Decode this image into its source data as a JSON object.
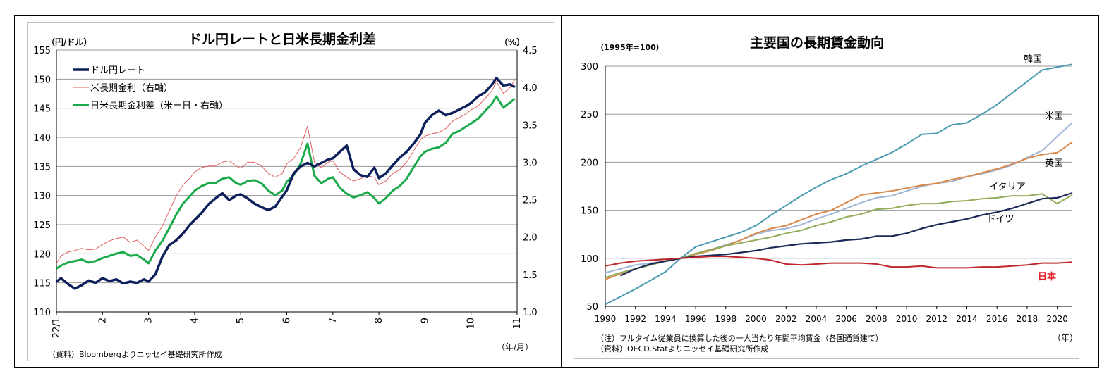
{
  "chart_data": [
    {
      "type": "line",
      "title": "ドル円レートと日米長期金利差",
      "left_unit": "（円/ドル）",
      "right_unit": "（%）",
      "x_unit": "（年/月）",
      "source": "（資料）Bloombergよりニッセイ基礎研究所作成",
      "ylim_left": [
        110,
        155
      ],
      "yticks_left": [
        "110",
        "115",
        "120",
        "125",
        "130",
        "135",
        "140",
        "145",
        "150",
        "155"
      ],
      "ylim_right": [
        1.0,
        4.5
      ],
      "yticks_right": [
        "1.0",
        "1.5",
        "2.0",
        "2.5",
        "3.0",
        "3.5",
        "4.0",
        "4.5"
      ],
      "xlim": [
        1,
        11
      ],
      "x_tick_labels": [
        "22/1",
        "2",
        "3",
        "4",
        "5",
        "6",
        "7",
        "8",
        "9",
        "10",
        "11"
      ],
      "grid": true,
      "legend_position": "top-left",
      "colors": {
        "usdjpy": "#0c1f5b",
        "us10y": "#e06060",
        "spread": "#1aaa4a"
      },
      "series": [
        {
          "name": "ドル円レート",
          "axis": "left",
          "x": [
            1.0,
            1.1,
            1.25,
            1.4,
            1.55,
            1.7,
            1.85,
            2.0,
            2.15,
            2.3,
            2.45,
            2.6,
            2.75,
            2.9,
            3.0,
            3.15,
            3.3,
            3.45,
            3.6,
            3.75,
            3.9,
            4.0,
            4.15,
            4.3,
            4.45,
            4.6,
            4.75,
            4.9,
            5.0,
            5.15,
            5.3,
            5.45,
            5.6,
            5.75,
            5.9,
            6.0,
            6.15,
            6.3,
            6.45,
            6.6,
            6.75,
            6.9,
            7.0,
            7.15,
            7.3,
            7.45,
            7.6,
            7.75,
            7.9,
            8.0,
            8.15,
            8.3,
            8.45,
            8.6,
            8.75,
            8.9,
            9.0,
            9.15,
            9.3,
            9.45,
            9.6,
            9.75,
            9.9,
            10.0,
            10.15,
            10.3,
            10.45,
            10.55,
            10.7,
            10.85,
            10.95
          ],
          "values": [
            115.2,
            115.8,
            114.8,
            114.0,
            114.6,
            115.4,
            115.0,
            115.8,
            115.3,
            115.6,
            114.9,
            115.2,
            115.0,
            115.6,
            115.2,
            116.5,
            119.5,
            121.5,
            122.3,
            123.5,
            125.0,
            125.8,
            127.0,
            128.5,
            129.5,
            130.4,
            129.2,
            130.0,
            130.2,
            129.5,
            128.6,
            128.0,
            127.5,
            128.1,
            129.8,
            130.9,
            133.8,
            135.0,
            135.6,
            135.0,
            135.6,
            136.2,
            136.4,
            137.5,
            138.6,
            134.5,
            133.5,
            133.2,
            134.8,
            133.0,
            133.8,
            135.2,
            136.5,
            137.5,
            138.9,
            140.5,
            142.5,
            143.8,
            144.6,
            143.8,
            144.2,
            144.8,
            145.4,
            145.9,
            147.0,
            147.7,
            149.0,
            150.2,
            148.9,
            149.1,
            148.6
          ]
        },
        {
          "name": "米長期金利（右軸）",
          "axis": "right",
          "x": [
            1.0,
            1.1,
            1.25,
            1.4,
            1.55,
            1.7,
            1.85,
            2.0,
            2.15,
            2.3,
            2.45,
            2.6,
            2.75,
            2.9,
            3.0,
            3.15,
            3.3,
            3.45,
            3.6,
            3.75,
            3.9,
            4.0,
            4.15,
            4.3,
            4.45,
            4.6,
            4.75,
            4.9,
            5.0,
            5.15,
            5.3,
            5.45,
            5.6,
            5.75,
            5.9,
            6.0,
            6.15,
            6.3,
            6.45,
            6.6,
            6.75,
            6.9,
            7.0,
            7.15,
            7.3,
            7.45,
            7.6,
            7.75,
            7.9,
            8.0,
            8.15,
            8.3,
            8.45,
            8.6,
            8.75,
            8.9,
            9.0,
            9.15,
            9.3,
            9.45,
            9.6,
            9.75,
            9.9,
            10.0,
            10.15,
            10.3,
            10.45,
            10.55,
            10.7,
            10.85,
            10.95
          ],
          "values": [
            1.65,
            1.75,
            1.8,
            1.82,
            1.85,
            1.83,
            1.84,
            1.9,
            1.95,
            1.98,
            2.0,
            1.93,
            1.96,
            1.88,
            1.82,
            2.0,
            2.15,
            2.35,
            2.55,
            2.7,
            2.79,
            2.87,
            2.93,
            2.95,
            2.95,
            3.0,
            3.02,
            2.95,
            2.92,
            3.0,
            3.0,
            2.95,
            2.85,
            2.8,
            2.85,
            2.98,
            3.05,
            3.2,
            3.48,
            3.0,
            2.93,
            3.0,
            3.02,
            2.87,
            2.8,
            2.75,
            2.78,
            2.82,
            2.8,
            2.7,
            2.75,
            2.85,
            2.9,
            3.0,
            3.15,
            3.3,
            3.35,
            3.38,
            3.4,
            3.45,
            3.55,
            3.6,
            3.65,
            3.7,
            3.75,
            3.85,
            3.95,
            4.08,
            3.92,
            4.0,
            4.1
          ]
        },
        {
          "name": "日米長期金利差（米ー日・右軸）",
          "axis": "right",
          "x": [
            1.0,
            1.1,
            1.25,
            1.4,
            1.55,
            1.7,
            1.85,
            2.0,
            2.15,
            2.3,
            2.45,
            2.6,
            2.75,
            2.9,
            3.0,
            3.15,
            3.3,
            3.45,
            3.6,
            3.75,
            3.9,
            4.0,
            4.15,
            4.3,
            4.45,
            4.6,
            4.75,
            4.9,
            5.0,
            5.15,
            5.3,
            5.45,
            5.6,
            5.75,
            5.9,
            6.0,
            6.15,
            6.3,
            6.45,
            6.6,
            6.75,
            6.9,
            7.0,
            7.15,
            7.3,
            7.45,
            7.6,
            7.75,
            7.9,
            8.0,
            8.15,
            8.3,
            8.45,
            8.6,
            8.75,
            8.9,
            9.0,
            9.15,
            9.3,
            9.45,
            9.6,
            9.75,
            9.9,
            10.0,
            10.15,
            10.3,
            10.45,
            10.55,
            10.7,
            10.85,
            10.95
          ],
          "values": [
            1.58,
            1.62,
            1.66,
            1.68,
            1.7,
            1.66,
            1.68,
            1.72,
            1.75,
            1.78,
            1.8,
            1.75,
            1.76,
            1.7,
            1.65,
            1.82,
            1.95,
            2.12,
            2.3,
            2.45,
            2.55,
            2.62,
            2.68,
            2.72,
            2.72,
            2.78,
            2.8,
            2.72,
            2.7,
            2.75,
            2.76,
            2.72,
            2.62,
            2.56,
            2.62,
            2.74,
            2.83,
            2.98,
            3.25,
            2.82,
            2.72,
            2.78,
            2.8,
            2.66,
            2.58,
            2.53,
            2.56,
            2.6,
            2.52,
            2.45,
            2.52,
            2.62,
            2.68,
            2.78,
            2.93,
            3.08,
            3.14,
            3.18,
            3.2,
            3.26,
            3.38,
            3.42,
            3.48,
            3.52,
            3.58,
            3.68,
            3.78,
            3.88,
            3.73,
            3.8,
            3.85
          ]
        }
      ]
    },
    {
      "type": "line",
      "title": "主要国の長期賃金動向",
      "y_unit": "（1995年=100）",
      "x_unit": "（年）",
      "note": "（注）フルタイム従業員に換算した後の一人当たり年間平均賃金（各国通貨建て）",
      "source": "（資料）OECD.Statよりニッセイ基礎研究所作成",
      "ylim": [
        50,
        300
      ],
      "yticks": [
        "50",
        "100",
        "150",
        "200",
        "250",
        "300"
      ],
      "xlim": [
        1990,
        2021
      ],
      "x_tick_labels": [
        "1990",
        "1992",
        "1994",
        "1996",
        "1998",
        "2000",
        "2002",
        "2004",
        "2006",
        "2008",
        "2010",
        "2012",
        "2014",
        "2016",
        "2018",
        "2020"
      ],
      "grid": true,
      "legend_position": "direct-labels-right",
      "series": [
        {
          "name": "韓国",
          "color": "#4a9ab0",
          "label_color": "#000000",
          "x": [
            1990,
            1991,
            1992,
            1993,
            1994,
            1995,
            1996,
            1997,
            1998,
            1999,
            2000,
            2001,
            2002,
            2003,
            2004,
            2005,
            2006,
            2007,
            2008,
            2009,
            2010,
            2011,
            2012,
            2013,
            2014,
            2015,
            2016,
            2017,
            2018,
            2019,
            2020,
            2021
          ],
          "values": [
            52,
            60,
            68,
            77,
            86,
            100,
            112,
            117,
            122,
            127,
            134,
            145,
            155,
            165,
            174,
            182,
            188,
            196,
            203,
            210,
            219,
            229,
            230,
            239,
            241,
            250,
            260,
            272,
            284,
            296,
            299,
            302
          ]
        },
        {
          "name": "米国",
          "color": "#9fb6d4",
          "label_color": "#000000",
          "x": [
            1990,
            1991,
            1992,
            1993,
            1994,
            1995,
            1996,
            1997,
            1998,
            1999,
            2000,
            2001,
            2002,
            2003,
            2004,
            2005,
            2006,
            2007,
            2008,
            2009,
            2010,
            2011,
            2012,
            2013,
            2014,
            2015,
            2016,
            2017,
            2018,
            2019,
            2020,
            2021
          ],
          "values": [
            85,
            89,
            93,
            95,
            97,
            100,
            104,
            109,
            114,
            119,
            125,
            129,
            131,
            135,
            141,
            146,
            152,
            158,
            163,
            165,
            170,
            175,
            178,
            180,
            185,
            188,
            192,
            197,
            205,
            212,
            227,
            241
          ]
        },
        {
          "name": "英国",
          "color": "#d9894a",
          "label_color": "#000000",
          "x": [
            1990,
            1991,
            1992,
            1993,
            1994,
            1995,
            1996,
            1997,
            1998,
            1999,
            2000,
            2001,
            2002,
            2003,
            2004,
            2005,
            2006,
            2007,
            2008,
            2009,
            2010,
            2011,
            2012,
            2013,
            2014,
            2015,
            2016,
            2017,
            2018,
            2019,
            2020,
            2021
          ],
          "values": [
            78,
            84,
            89,
            93,
            97,
            100,
            104,
            108,
            113,
            119,
            126,
            131,
            134,
            140,
            146,
            150,
            158,
            166,
            168,
            170,
            173,
            176,
            178,
            182,
            185,
            189,
            193,
            198,
            204,
            208,
            210,
            221
          ]
        },
        {
          "name": "イタリア",
          "color": "#93ad5a",
          "label_color": "#000000",
          "x": [
            1990,
            1991,
            1992,
            1993,
            1994,
            1995,
            1996,
            1997,
            1998,
            1999,
            2000,
            2001,
            2002,
            2003,
            2004,
            2005,
            2006,
            2007,
            2008,
            2009,
            2010,
            2011,
            2012,
            2013,
            2014,
            2015,
            2016,
            2017,
            2018,
            2019,
            2020,
            2021
          ],
          "values": [
            80,
            85,
            89,
            93,
            97,
            100,
            105,
            109,
            113,
            116,
            119,
            122,
            126,
            129,
            134,
            138,
            143,
            146,
            151,
            152,
            155,
            157,
            157,
            159,
            160,
            162,
            163,
            165,
            165,
            167,
            157,
            166
          ]
        },
        {
          "name": "ドイツ",
          "color": "#1b2a58",
          "label_color": "#000000",
          "x": [
            1991,
            1992,
            1993,
            1994,
            1995,
            1996,
            1997,
            1998,
            1999,
            2000,
            2001,
            2002,
            2003,
            2004,
            2005,
            2006,
            2007,
            2008,
            2009,
            2010,
            2011,
            2012,
            2013,
            2014,
            2015,
            2016,
            2017,
            2018,
            2019,
            2020,
            2021
          ],
          "values": [
            82,
            89,
            94,
            97,
            100,
            102,
            103,
            104,
            106,
            108,
            111,
            113,
            115,
            116,
            117,
            119,
            120,
            123,
            123,
            126,
            131,
            135,
            138,
            141,
            145,
            148,
            152,
            157,
            162,
            163,
            168
          ]
        },
        {
          "name": "日本",
          "color": "#c0272d",
          "label_color": "#e0202a",
          "x": [
            1990,
            1991,
            1992,
            1993,
            1994,
            1995,
            1996,
            1997,
            1998,
            1999,
            2000,
            2001,
            2002,
            2003,
            2004,
            2005,
            2006,
            2007,
            2008,
            2009,
            2010,
            2011,
            2012,
            2013,
            2014,
            2015,
            2016,
            2017,
            2018,
            2019,
            2020,
            2021
          ],
          "values": [
            92,
            95,
            97,
            98,
            99,
            100,
            101,
            102,
            102,
            101,
            100,
            98,
            94,
            93,
            94,
            95,
            95,
            95,
            94,
            91,
            91,
            92,
            90,
            90,
            90,
            91,
            91,
            92,
            93,
            95,
            95,
            96
          ]
        }
      ]
    }
  ]
}
